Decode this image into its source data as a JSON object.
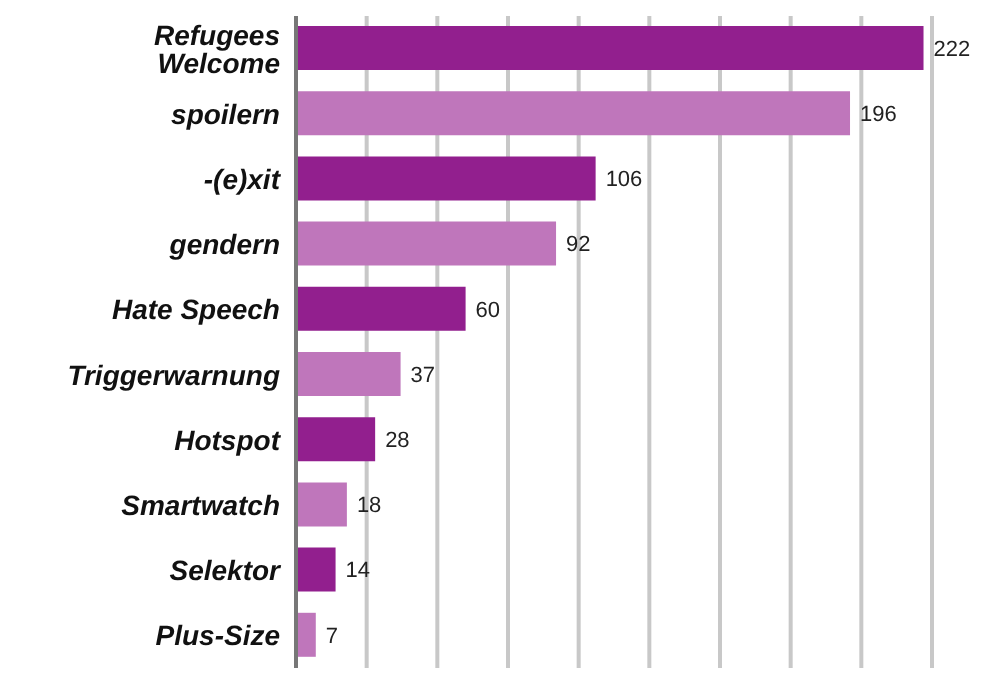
{
  "chart_data": {
    "type": "bar",
    "orientation": "horizontal",
    "categories": [
      "Refugees Welcome",
      "spoilern",
      "-(e)xit",
      "gendern",
      "Hate Speech",
      "Triggerwarnung",
      "Hotspot",
      "Smartwatch",
      "Selektor",
      "Plus-Size"
    ],
    "values": [
      222,
      196,
      106,
      92,
      60,
      37,
      28,
      18,
      14,
      7
    ],
    "colors": [
      "#921f8e",
      "#bf76bb",
      "#921f8e",
      "#bf76bb",
      "#921f8e",
      "#bf76bb",
      "#921f8e",
      "#bf76bb",
      "#921f8e",
      "#bf76bb"
    ],
    "xlim": [
      0,
      225
    ],
    "xticks": [
      {
        "value": 0,
        "label": null
      },
      {
        "value": 25,
        "label": null
      },
      {
        "value": 50,
        "label": null
      },
      {
        "value": 75,
        "label": null
      },
      {
        "value": 100,
        "label": null
      },
      {
        "value": 125,
        "label": null
      },
      {
        "value": 150,
        "label": null
      },
      {
        "value": 175,
        "label": null
      },
      {
        "value": 200,
        "label": null
      },
      {
        "value": 225,
        "label": null
      }
    ],
    "grid": "x",
    "tick_labels": "y",
    "data_labels": true
  }
}
